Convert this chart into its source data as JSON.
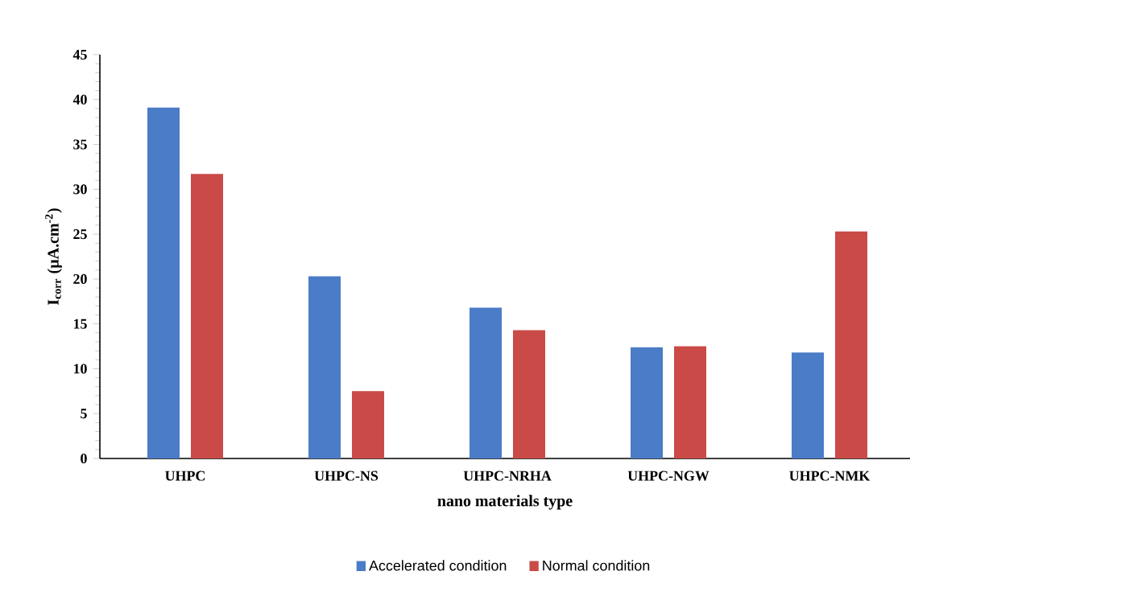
{
  "chart_data": {
    "type": "bar",
    "xlabel": "nano materials type",
    "ylabel": "I$_{corr}$ (µA.cm$^{-2}$)",
    "categories": [
      "UHPC",
      "UHPC-NS",
      "UHPC-NRHA",
      "UHPC-NGW",
      "UHPC-NMK"
    ],
    "series": [
      {
        "name": "Accelerated condition",
        "color": "#4a7cc7",
        "values": [
          39.1,
          20.3,
          16.8,
          12.4,
          11.8
        ]
      },
      {
        "name": "Normal condition",
        "color": "#c94a47",
        "values": [
          31.7,
          7.5,
          14.3,
          12.5,
          25.3
        ]
      }
    ],
    "ylim": [
      0,
      45
    ],
    "yticks": [
      0,
      5,
      10,
      15,
      20,
      25,
      30,
      35,
      40,
      45
    ],
    "grid": false,
    "legend": "bottom"
  }
}
